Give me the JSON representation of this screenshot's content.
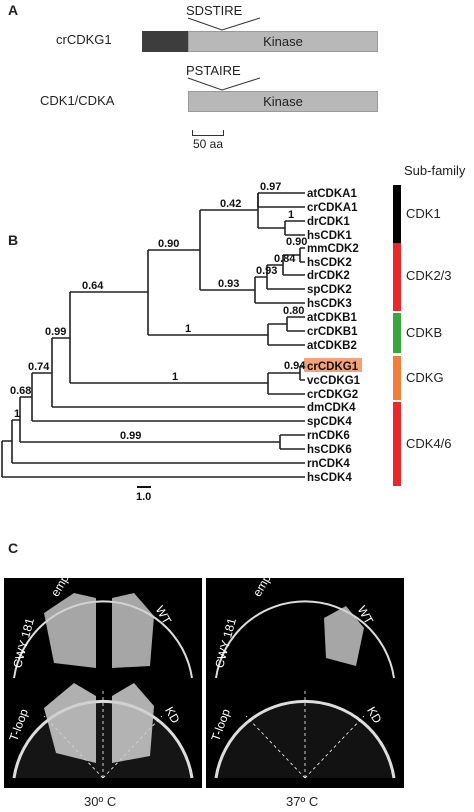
{
  "panel_a": {
    "letter": "A",
    "row1": {
      "name": "crCDKG1",
      "motif": "SDSTIRE",
      "domain": "Kinase"
    },
    "row2": {
      "name": "CDK1/CDKA",
      "motif": "PSTAIRE",
      "domain": "Kinase"
    },
    "scale": "50 aa"
  },
  "panel_b": {
    "letter": "B",
    "subfamily_header": "Sub-family",
    "taxa": [
      "atCDKA1",
      "crCDKA1",
      "drCDK1",
      "hsCDK1",
      "mmCDK2",
      "hsCDK2",
      "drCDK2",
      "spCDK2",
      "hsCDK3",
      "atCDKB1",
      "crCDKB1",
      "atCDKB2",
      "crCDKG1",
      "vcCDKG1",
      "crCDKG2",
      "dmCDK4",
      "spCDK4",
      "rnCDK6",
      "hsCDK6",
      "rnCDK4",
      "hsCDK4"
    ],
    "bootstrap": [
      "0.97",
      "1",
      "0.42",
      "0.90",
      "0.84",
      "0.93",
      "0.93",
      "0.90",
      "0.80",
      "1",
      "0.64",
      "0.94",
      "1",
      "0.99",
      "0.74",
      "0.68",
      "0.99",
      "1"
    ],
    "subfamilies": [
      {
        "name": "CDK1",
        "color": "#000000"
      },
      {
        "name": "CDK2/3",
        "color": "#e8282b"
      },
      {
        "name": "CDKB",
        "color": "#3aa640"
      },
      {
        "name": "CDKG",
        "color": "#f07f3c"
      },
      {
        "name": "CDK4/6",
        "color": "#e8282b"
      }
    ],
    "highlight_color": "#f3a27a",
    "scale": "1.0"
  },
  "panel_c": {
    "letter": "C",
    "plate_labels": [
      "empty vector",
      "WT",
      "CWY 181",
      "T-loop",
      "KD"
    ],
    "temp_left": "30º C",
    "temp_right": "37º C"
  }
}
